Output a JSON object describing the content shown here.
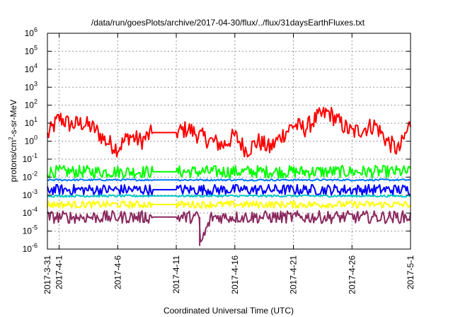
{
  "chart_data": {
    "type": "line",
    "title": "/data/run/goesPlots/archive/2017-04-30/flux/../flux/31daysEarthFluxes.txt",
    "xlabel": "Coordinated Universal Time (UTC)",
    "ylabel": {
      "prefix": "protons/cm",
      "superscript": "2",
      "suffix": "-s-sr-MeV"
    },
    "yscale": "log",
    "ylim": [
      1e-06,
      1000000.0
    ],
    "y_ticks": [
      {
        "base": "10",
        "exp": "-6"
      },
      {
        "base": "10",
        "exp": "-5"
      },
      {
        "base": "10",
        "exp": "-4"
      },
      {
        "base": "10",
        "exp": "-3"
      },
      {
        "base": "10",
        "exp": "-2"
      },
      {
        "base": "10",
        "exp": "-1"
      },
      {
        "base": "10",
        "exp": "0"
      },
      {
        "base": "10",
        "exp": "1"
      },
      {
        "base": "10",
        "exp": "2"
      },
      {
        "base": "10",
        "exp": "3"
      },
      {
        "base": "10",
        "exp": "4"
      },
      {
        "base": "10",
        "exp": "5"
      },
      {
        "base": "10",
        "exp": "6"
      }
    ],
    "xlim": [
      "2017-03-31",
      "2017-05-01"
    ],
    "x_ticks": [
      "2017-3-31",
      "2017-4-1",
      "2017-4-6",
      "2017-4-11",
      "2017-4-16",
      "2017-4-21",
      "2017-4-26",
      "2017-5-1"
    ],
    "x_tick_dates": [
      "2017-03-31",
      "2017-04-01",
      "2017-04-06",
      "2017-04-11",
      "2017-04-16",
      "2017-04-21",
      "2017-04-26",
      "2017-05-01"
    ],
    "grid": true,
    "legend": "none",
    "data_gap": [
      "2017-04-09",
      "2017-04-11"
    ],
    "series": [
      {
        "color": "#ff0000",
        "x": [
          "2017-03-31",
          "2017-04-01",
          "2017-04-02",
          "2017-04-03",
          "2017-04-04",
          "2017-04-05",
          "2017-04-06",
          "2017-04-07",
          "2017-04-08",
          "2017-04-09",
          "2017-04-11",
          "2017-04-12",
          "2017-04-13",
          "2017-04-14",
          "2017-04-15",
          "2017-04-16",
          "2017-04-17",
          "2017-04-18",
          "2017-04-19",
          "2017-04-20",
          "2017-04-21",
          "2017-04-22",
          "2017-04-23",
          "2017-04-24",
          "2017-04-25",
          "2017-04-26",
          "2017-04-27",
          "2017-04-28",
          "2017-04-29",
          "2017-04-30",
          "2017-05-01"
        ],
        "values": [
          2,
          20,
          8,
          10,
          5,
          1,
          0.4,
          2,
          1,
          3,
          3,
          5,
          2,
          1,
          0.6,
          2,
          0.3,
          1,
          0.4,
          2,
          8,
          5,
          20,
          40,
          10,
          3,
          5,
          8,
          1,
          0.3,
          10
        ],
        "noise": 0.5
      },
      {
        "color": "#00ff00",
        "x": [
          "2017-03-31",
          "2017-05-01"
        ],
        "values": [
          0.02,
          0.02
        ],
        "noise": 0.35
      },
      {
        "color": "#0078ff",
        "x": [
          "2017-03-31",
          "2017-05-01"
        ],
        "values": [
          0.007,
          0.007
        ],
        "noise": 0.05
      },
      {
        "color": "#0000ff",
        "x": [
          "2017-03-31",
          "2017-05-01"
        ],
        "values": [
          0.002,
          0.002
        ],
        "noise": 0.3
      },
      {
        "color": "#00c8c8",
        "x": [
          "2017-03-31",
          "2017-05-01"
        ],
        "values": [
          0.0009,
          0.0009
        ],
        "noise": 0.06
      },
      {
        "color": "#ffff00",
        "x": [
          "2017-03-31",
          "2017-05-01"
        ],
        "values": [
          0.0003,
          0.0003
        ],
        "noise": 0.2
      },
      {
        "color": "#8b2a60",
        "x": [
          "2017-03-31",
          "2017-04-13",
          "2017-04-13",
          "2017-04-14",
          "2017-05-01"
        ],
        "values": [
          6e-05,
          6e-05,
          1.5e-06,
          6e-05,
          6e-05
        ],
        "noise": 0.35
      }
    ]
  }
}
